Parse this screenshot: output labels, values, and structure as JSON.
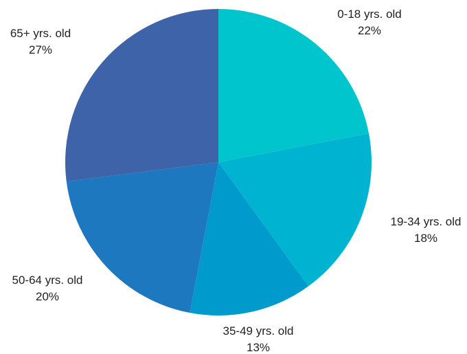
{
  "chart_data": {
    "type": "pie",
    "start_angle_deg": 0,
    "direction": "clockwise",
    "slices": [
      {
        "label": "0-18 yrs. old",
        "percent_label": "22%",
        "value": 22,
        "color": "#00C5CD"
      },
      {
        "label": "19-34 yrs. old",
        "percent_label": "18%",
        "value": 18,
        "color": "#00B3D1"
      },
      {
        "label": "35-49 yrs. old",
        "percent_label": "13%",
        "value": 13,
        "color": "#009BCC"
      },
      {
        "label": "50-64 yrs. old",
        "percent_label": "20%",
        "value": 20,
        "color": "#1E78BF"
      },
      {
        "label": "65+ yrs. old",
        "percent_label": "27%",
        "value": 27,
        "color": "#3E63A9"
      }
    ]
  }
}
